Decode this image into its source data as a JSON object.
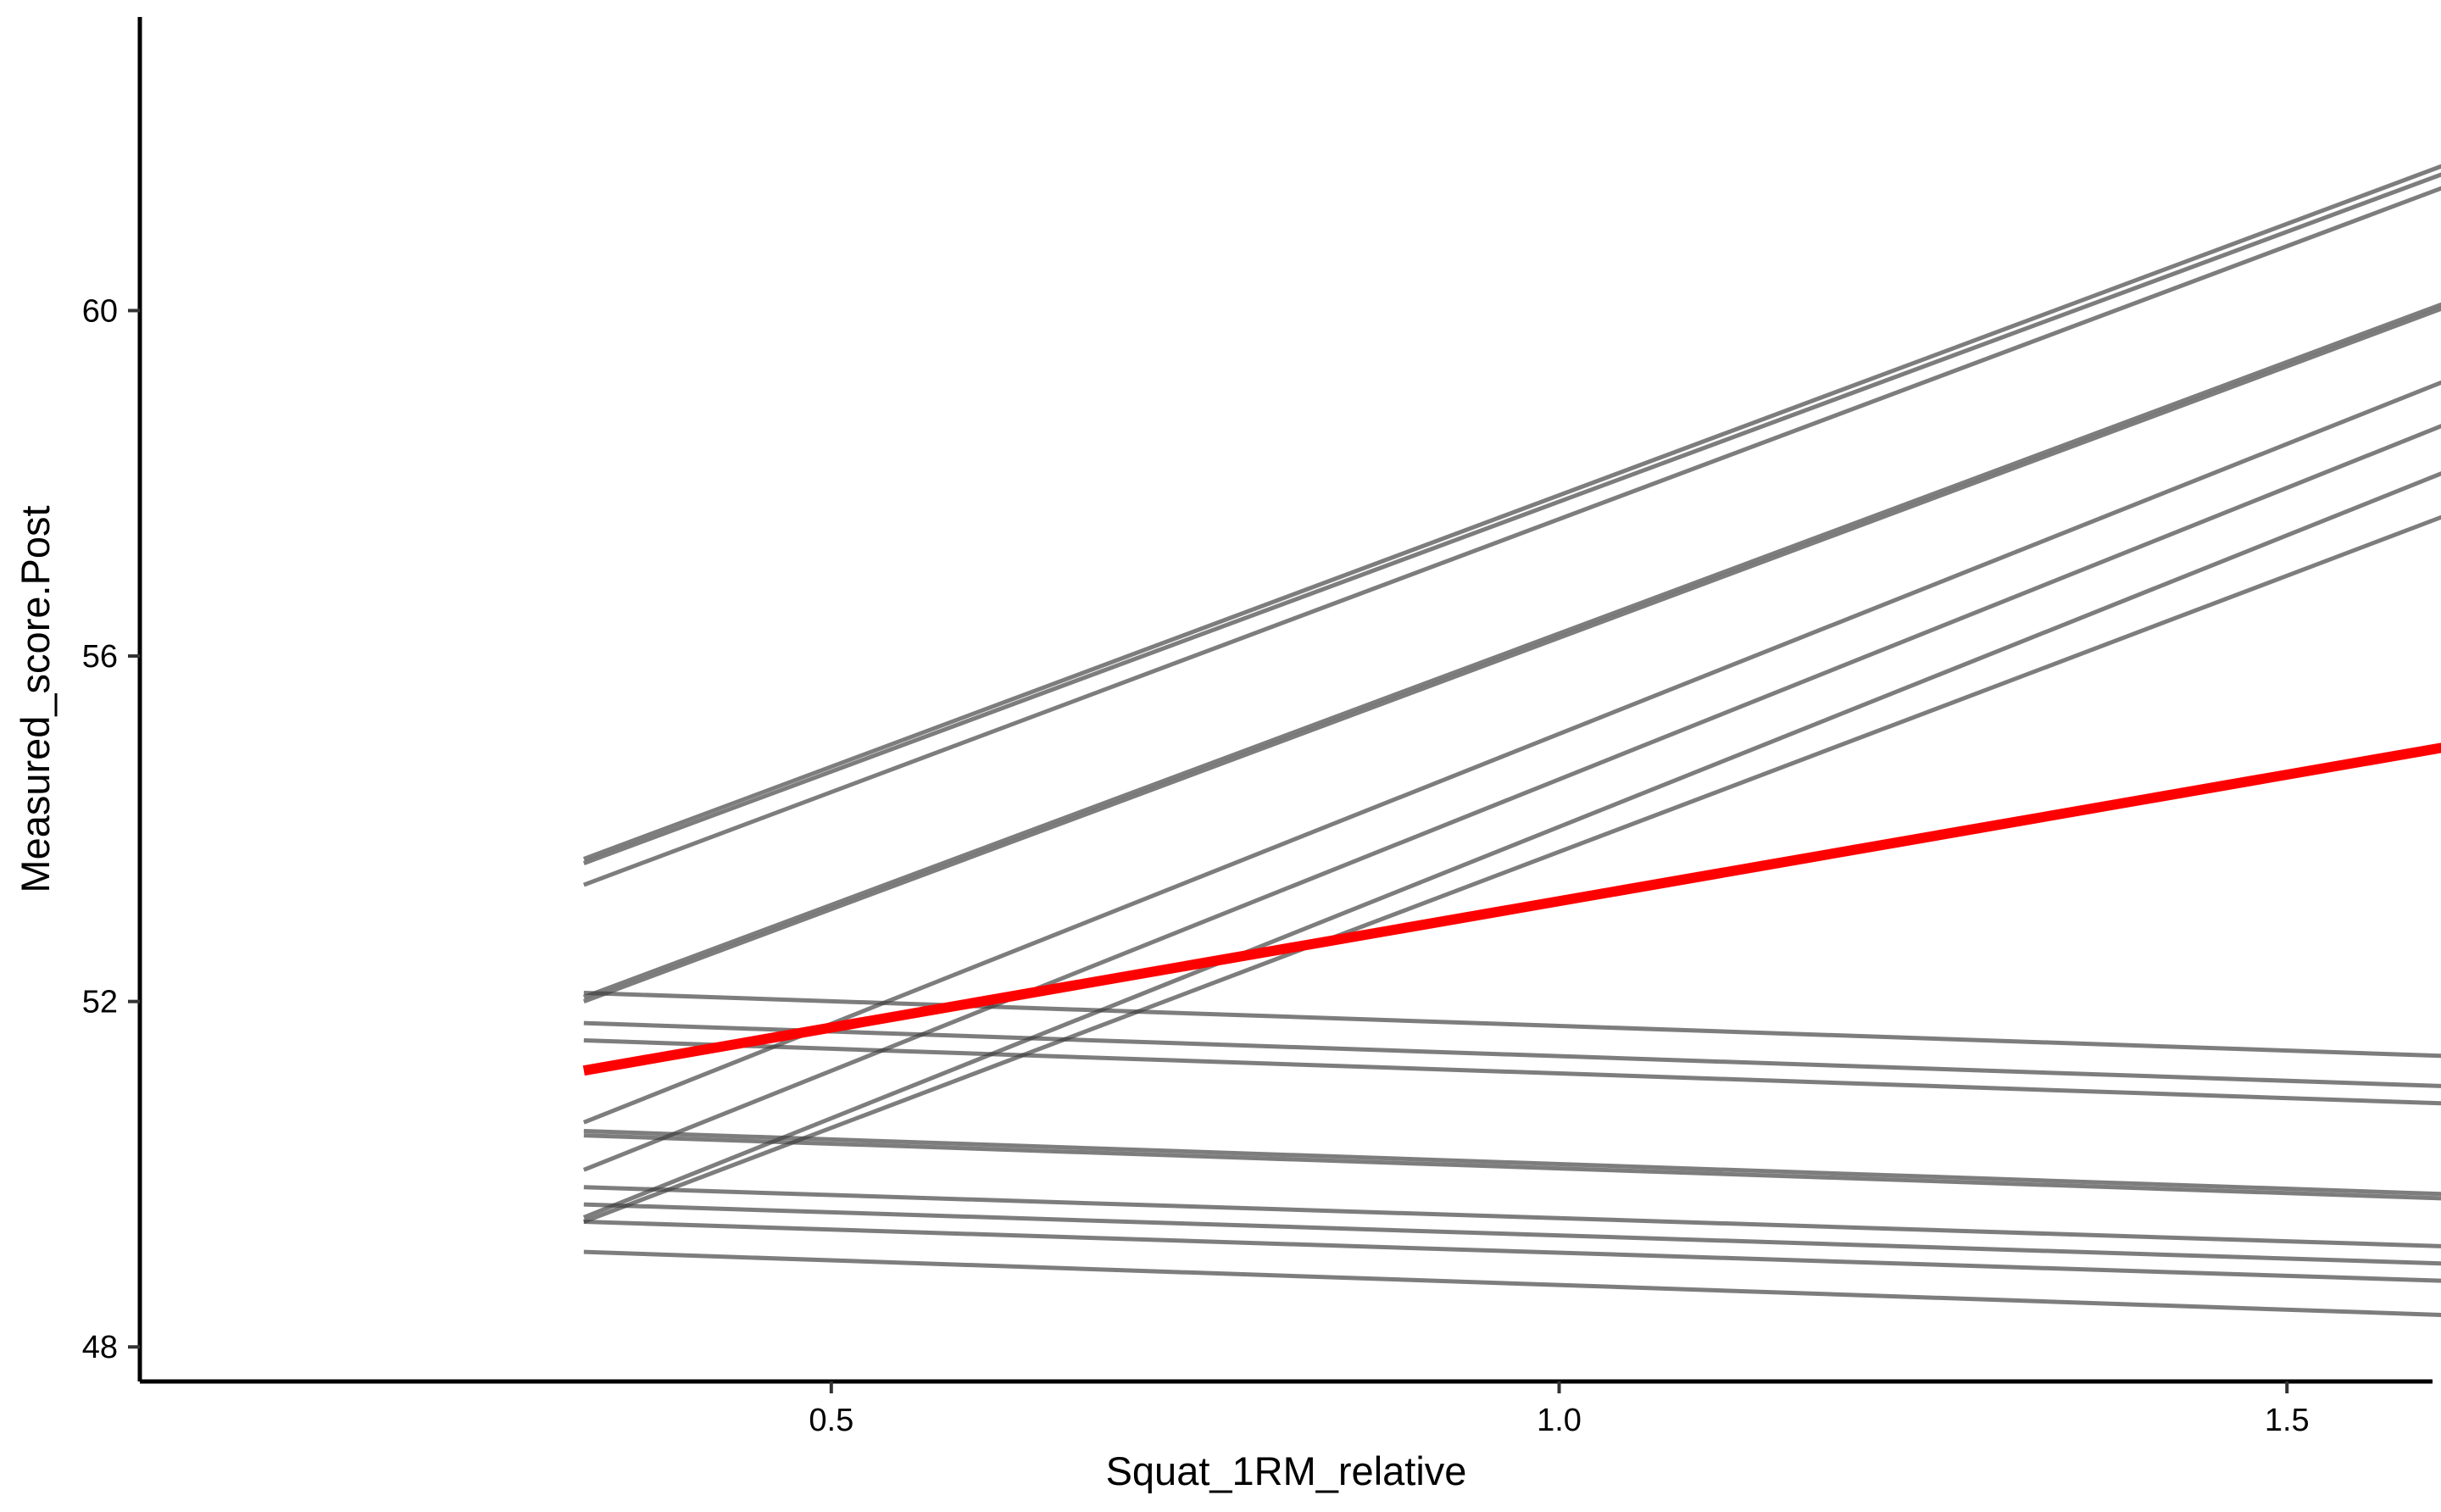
{
  "chart_data": {
    "type": "line",
    "title": "",
    "xlabel": "Squat_1RM_relative",
    "ylabel": "Measured_score.Post",
    "xlim": [
      0.025,
      1.6
    ],
    "ylim": [
      47.6,
      63.4
    ],
    "xticks": [
      0.5,
      1.0,
      1.5
    ],
    "xtick_labels": [
      "0.5",
      "1.0",
      "1.5"
    ],
    "yticks": [
      48,
      52,
      56,
      60
    ],
    "ytick_labels": [
      "48",
      "52",
      "56",
      "60"
    ],
    "grid": false,
    "legend": "none",
    "colors": {
      "individual": "#404040",
      "average": "#ff0000"
    },
    "individual_lines": [
      {
        "x": [
          0.33,
          1.73
        ],
        "y": [
          53.65,
          62.45
        ]
      },
      {
        "x": [
          0.33,
          1.73
        ],
        "y": [
          53.6,
          62.35
        ]
      },
      {
        "x": [
          0.33,
          1.73
        ],
        "y": [
          53.35,
          62.2
        ]
      },
      {
        "x": [
          0.33,
          1.73
        ],
        "y": [
          52.05,
          60.85
        ]
      },
      {
        "x": [
          0.33,
          1.73
        ],
        "y": [
          52.0,
          60.8
        ]
      },
      {
        "x": [
          0.33,
          1.73
        ],
        "y": [
          50.6,
          60.0
        ]
      },
      {
        "x": [
          0.33,
          1.73
        ],
        "y": [
          50.05,
          59.5
        ]
      },
      {
        "x": [
          0.33,
          1.73
        ],
        "y": [
          49.5,
          58.95
        ]
      },
      {
        "x": [
          0.33,
          1.73
        ],
        "y": [
          49.45,
          58.4
        ]
      },
      {
        "x": [
          0.33,
          1.73
        ],
        "y": [
          52.1,
          51.3
        ]
      },
      {
        "x": [
          0.33,
          1.73
        ],
        "y": [
          51.75,
          50.95
        ]
      },
      {
        "x": [
          0.33,
          1.73
        ],
        "y": [
          51.55,
          50.75
        ]
      },
      {
        "x": [
          0.33,
          1.73
        ],
        "y": [
          50.5,
          49.7
        ]
      },
      {
        "x": [
          0.33,
          1.73
        ],
        "y": [
          50.45,
          49.65
        ]
      },
      {
        "x": [
          0.33,
          1.73
        ],
        "y": [
          49.85,
          49.1
        ]
      },
      {
        "x": [
          0.33,
          1.73
        ],
        "y": [
          49.65,
          48.9
        ]
      },
      {
        "x": [
          0.33,
          1.73
        ],
        "y": [
          49.45,
          48.7
        ]
      },
      {
        "x": [
          0.33,
          1.73
        ],
        "y": [
          49.1,
          48.3
        ]
      }
    ],
    "average_line": {
      "x": [
        0.33,
        1.73
      ],
      "y": [
        51.2,
        55.3
      ]
    }
  }
}
